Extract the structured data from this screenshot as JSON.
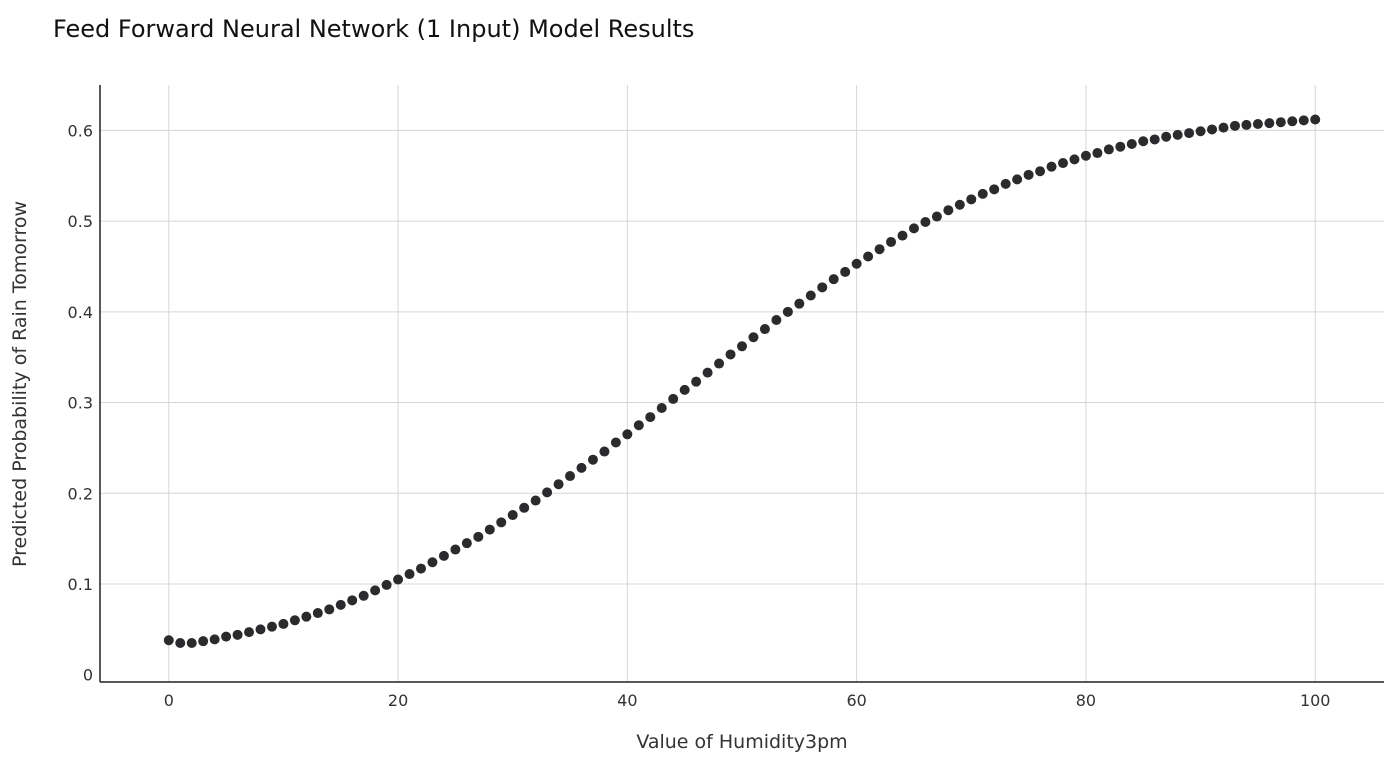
{
  "chart_data": {
    "type": "scatter",
    "title": "Feed Forward Neural Network (1 Input) Model Results",
    "xlabel": "Value of Humidity3pm",
    "ylabel": "Predicted Probability of Rain Tomorrow",
    "xlim": [
      -6,
      106
    ],
    "ylim": [
      -0.008,
      0.65
    ],
    "x_ticks": [
      0,
      20,
      40,
      60,
      80,
      100
    ],
    "y_ticks": [
      0,
      0.1,
      0.2,
      0.3,
      0.4,
      0.5,
      0.6
    ],
    "y_tick_labels": [
      "0",
      "0.1",
      "0.2",
      "0.3",
      "0.4",
      "0.5",
      "0.6"
    ],
    "grid": true,
    "marker_color": "#2b2b2d",
    "series": [
      {
        "x": [
          0,
          1,
          2,
          3,
          4,
          5,
          6,
          7,
          8,
          9,
          10,
          11,
          12,
          13,
          14,
          15,
          16,
          17,
          18,
          19,
          20,
          21,
          22,
          23,
          24,
          25,
          26,
          27,
          28,
          29,
          30,
          31,
          32,
          33,
          34,
          35,
          36,
          37,
          38,
          39,
          40,
          41,
          42,
          43,
          44,
          45,
          46,
          47,
          48,
          49,
          50,
          51,
          52,
          53,
          54,
          55,
          56,
          57,
          58,
          59,
          60,
          61,
          62,
          63,
          64,
          65,
          66,
          67,
          68,
          69,
          70,
          71,
          72,
          73,
          74,
          75,
          76,
          77,
          78,
          79,
          80,
          81,
          82,
          83,
          84,
          85,
          86,
          87,
          88,
          89,
          90,
          91,
          92,
          93,
          94,
          95,
          96,
          97,
          98,
          99,
          100
        ],
        "y": [
          0.038,
          0.035,
          0.035,
          0.037,
          0.039,
          0.042,
          0.044,
          0.047,
          0.05,
          0.053,
          0.056,
          0.06,
          0.064,
          0.068,
          0.072,
          0.077,
          0.082,
          0.087,
          0.093,
          0.099,
          0.105,
          0.111,
          0.117,
          0.124,
          0.131,
          0.138,
          0.145,
          0.152,
          0.16,
          0.168,
          0.176,
          0.184,
          0.192,
          0.201,
          0.21,
          0.219,
          0.228,
          0.237,
          0.246,
          0.256,
          0.265,
          0.275,
          0.284,
          0.294,
          0.304,
          0.314,
          0.323,
          0.333,
          0.343,
          0.353,
          0.362,
          0.372,
          0.381,
          0.391,
          0.4,
          0.409,
          0.418,
          0.427,
          0.436,
          0.444,
          0.453,
          0.461,
          0.469,
          0.477,
          0.484,
          0.492,
          0.499,
          0.505,
          0.512,
          0.518,
          0.524,
          0.53,
          0.535,
          0.541,
          0.546,
          0.551,
          0.555,
          0.56,
          0.564,
          0.568,
          0.572,
          0.575,
          0.579,
          0.582,
          0.585,
          0.588,
          0.59,
          0.593,
          0.595,
          0.597,
          0.599,
          0.601,
          0.603,
          0.605,
          0.606,
          0.607,
          0.608,
          0.609,
          0.61,
          0.611,
          0.612
        ]
      }
    ]
  }
}
